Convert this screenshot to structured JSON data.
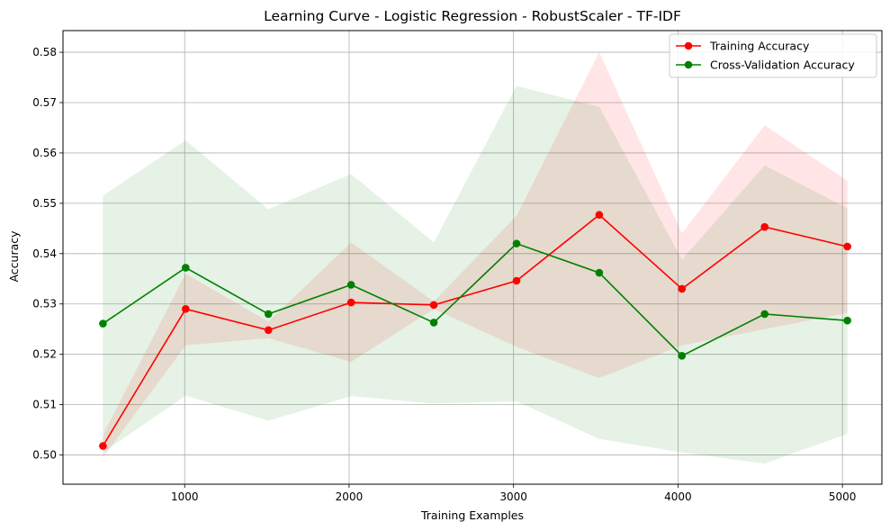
{
  "chart_data": {
    "type": "line",
    "title": "Learning Curve - Logistic Regression - RobustScaler - TF-IDF",
    "xlabel": "Training Examples",
    "ylabel": "Accuracy",
    "xlim": [
      260,
      5240
    ],
    "ylim": [
      0.4942,
      0.5843
    ],
    "xticks": [
      1000,
      2000,
      3000,
      4000,
      5000
    ],
    "xtick_labels": [
      "1000",
      "2000",
      "3000",
      "4000",
      "5000"
    ],
    "yticks": [
      0.5,
      0.51,
      0.52,
      0.53,
      0.54,
      0.55,
      0.56,
      0.57,
      0.58
    ],
    "ytick_labels": [
      "0.50",
      "0.51",
      "0.52",
      "0.53",
      "0.54",
      "0.55",
      "0.56",
      "0.57",
      "0.58"
    ],
    "grid": true,
    "legend_position": "top-right",
    "x": [
      503,
      1006,
      1509,
      2012,
      2515,
      3018,
      3521,
      4024,
      4527,
      5030
    ],
    "series": [
      {
        "name": "Training Accuracy",
        "color": "#ff0000",
        "values": [
          0.5018,
          0.529,
          0.5248,
          0.5303,
          0.5298,
          0.5346,
          0.5477,
          0.533,
          0.5453,
          0.5414
        ],
        "band_lower": [
          0.4995,
          0.5218,
          0.5232,
          0.5185,
          0.529,
          0.5215,
          0.5153,
          0.5218,
          0.525,
          0.5282
        ],
        "band_upper": [
          0.504,
          0.536,
          0.5265,
          0.5422,
          0.5305,
          0.5475,
          0.58,
          0.544,
          0.5655,
          0.5545
        ],
        "band_color": "#ff0000"
      },
      {
        "name": "Cross-Validation Accuracy",
        "color": "#008000",
        "values": [
          0.5261,
          0.5372,
          0.528,
          0.5338,
          0.5263,
          0.542,
          0.5362,
          0.5197,
          0.528,
          0.5267
        ],
        "band_lower": [
          0.5005,
          0.5118,
          0.5068,
          0.5117,
          0.5102,
          0.5107,
          0.5032,
          0.5005,
          0.4983,
          0.5042
        ],
        "band_upper": [
          0.5515,
          0.5625,
          0.5488,
          0.5558,
          0.5422,
          0.5733,
          0.5692,
          0.5388,
          0.5575,
          0.549
        ],
        "band_color": "#008000"
      }
    ]
  }
}
